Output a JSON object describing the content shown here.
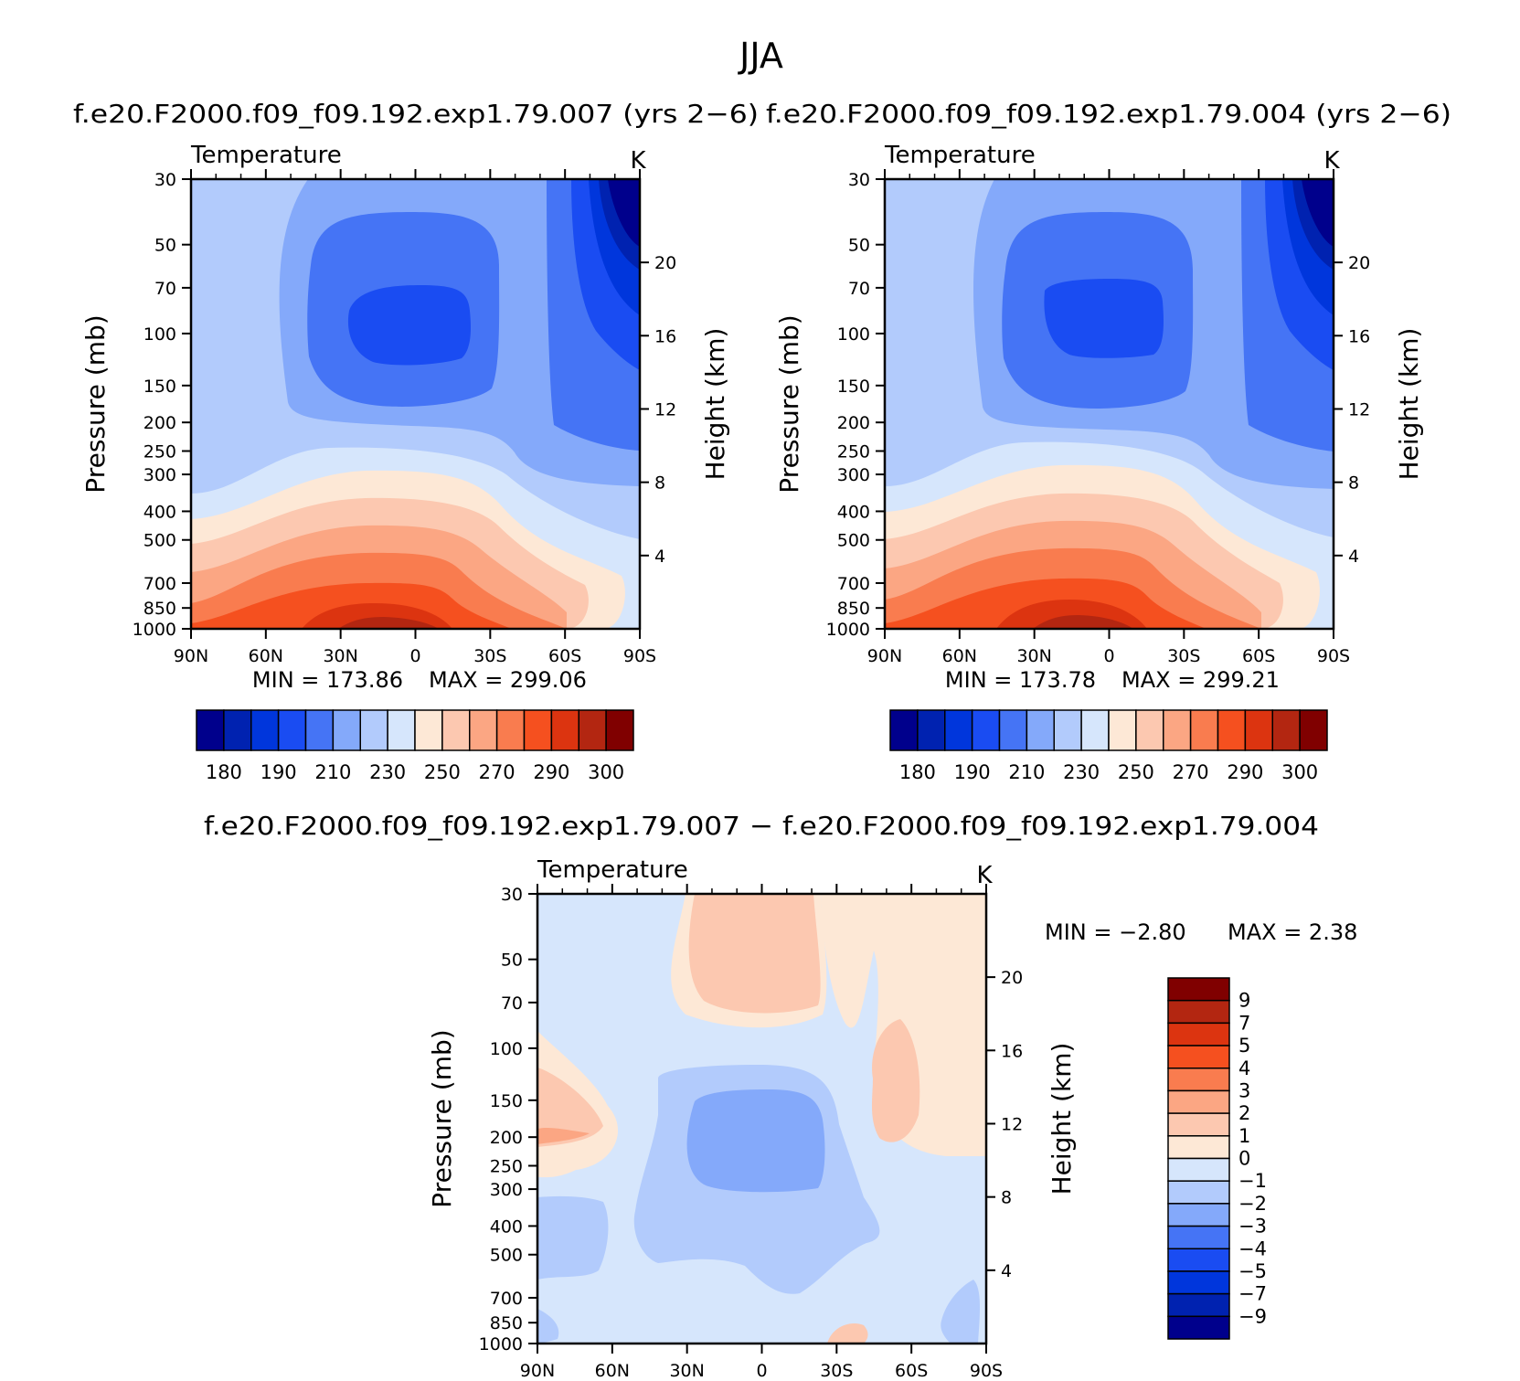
{
  "figure": {
    "main_title": "JJA"
  },
  "panels": [
    {
      "id": "exp007",
      "title": "f.e20.F2000.f09_f09.192.exp1.79.007 (yrs 2−6)",
      "field": "Temperature",
      "units": "K",
      "min_label": "MIN = 173.86",
      "max_label": "MAX = 299.06"
    },
    {
      "id": "exp004",
      "title": "f.e20.F2000.f09_f09.192.exp1.79.004 (yrs 2−6)",
      "field": "Temperature",
      "units": "K",
      "min_label": "MIN = 173.78",
      "max_label": "MAX = 299.21"
    },
    {
      "id": "diff",
      "title": "f.e20.F2000.f09_f09.192.exp1.79.007 − f.e20.F2000.f09_f09.192.exp1.79.004",
      "field": "Temperature",
      "units": "K",
      "min_label": "MIN = −2.80",
      "max_label": "MAX = 2.38"
    }
  ],
  "chart_data": [
    {
      "type": "heatmap",
      "title": "f.e20.F2000.f09_f09.192.exp1.79.007 (yrs 2−6)",
      "subtitle": "Temperature",
      "units": "K",
      "xlabel": "",
      "ylabel": "Pressure (mb)",
      "ylabel_right": "Height (km)",
      "x_ticks": [
        "90N",
        "60N",
        "30N",
        "0",
        "30S",
        "60S",
        "90S"
      ],
      "y_ticks": [
        30,
        50,
        70,
        100,
        150,
        200,
        250,
        300,
        400,
        500,
        700,
        850,
        1000
      ],
      "y_right_ticks": [
        4,
        8,
        12,
        16,
        20
      ],
      "y_scale": "log",
      "xlim": [
        90,
        -90
      ],
      "ylim": [
        1000,
        30
      ],
      "min": 173.86,
      "max": 299.06,
      "colorbar_ticks": [
        180,
        190,
        210,
        230,
        250,
        270,
        290,
        300
      ]
    },
    {
      "type": "heatmap",
      "title": "f.e20.F2000.f09_f09.192.exp1.79.004 (yrs 2−6)",
      "subtitle": "Temperature",
      "units": "K",
      "xlabel": "",
      "ylabel": "Pressure (mb)",
      "ylabel_right": "Height (km)",
      "x_ticks": [
        "90N",
        "60N",
        "30N",
        "0",
        "30S",
        "60S",
        "90S"
      ],
      "y_ticks": [
        30,
        50,
        70,
        100,
        150,
        200,
        250,
        300,
        400,
        500,
        700,
        850,
        1000
      ],
      "y_right_ticks": [
        4,
        8,
        12,
        16,
        20
      ],
      "y_scale": "log",
      "xlim": [
        90,
        -90
      ],
      "ylim": [
        1000,
        30
      ],
      "min": 173.78,
      "max": 299.21,
      "colorbar_ticks": [
        180,
        190,
        210,
        230,
        250,
        270,
        290,
        300
      ]
    },
    {
      "type": "heatmap",
      "title": "f.e20.F2000.f09_f09.192.exp1.79.007 − f.e20.F2000.f09_f09.192.exp1.79.004",
      "subtitle": "Temperature",
      "units": "K",
      "xlabel": "",
      "ylabel": "Pressure (mb)",
      "ylabel_right": "Height (km)",
      "x_ticks": [
        "90N",
        "60N",
        "30N",
        "0",
        "30S",
        "60S",
        "90S"
      ],
      "y_ticks": [
        30,
        50,
        70,
        100,
        150,
        200,
        250,
        300,
        400,
        500,
        700,
        850,
        1000
      ],
      "y_right_ticks": [
        4,
        8,
        12,
        16,
        20
      ],
      "y_scale": "log",
      "xlim": [
        90,
        -90
      ],
      "ylim": [
        1000,
        30
      ],
      "min": -2.8,
      "max": 2.38,
      "colorbar_ticks": [
        "9",
        "7",
        "5",
        "4",
        "3",
        "2",
        "1",
        "0",
        "−1",
        "−2",
        "−3",
        "−4",
        "−5",
        "−7",
        "−9"
      ]
    }
  ],
  "colors": {
    "abs_scale": [
      "#00008c",
      "#0022b0",
      "#0036dc",
      "#1a4cf2",
      "#4574f5",
      "#84a9fa",
      "#b2cbfc",
      "#d6e6fc",
      "#fde8d6",
      "#fcc8b0",
      "#fba683",
      "#f97c4f",
      "#f5501f",
      "#dc3410",
      "#b32611",
      "#800000"
    ],
    "diff_scale": [
      "#800000",
      "#b32611",
      "#dc3410",
      "#f5501f",
      "#f97c4f",
      "#fba683",
      "#fcc8b0",
      "#fde8d6",
      "#d6e6fc",
      "#b2cbfc",
      "#84a9fa",
      "#4574f5",
      "#1a4cf2",
      "#0036dc",
      "#0022b0",
      "#00008c"
    ]
  }
}
